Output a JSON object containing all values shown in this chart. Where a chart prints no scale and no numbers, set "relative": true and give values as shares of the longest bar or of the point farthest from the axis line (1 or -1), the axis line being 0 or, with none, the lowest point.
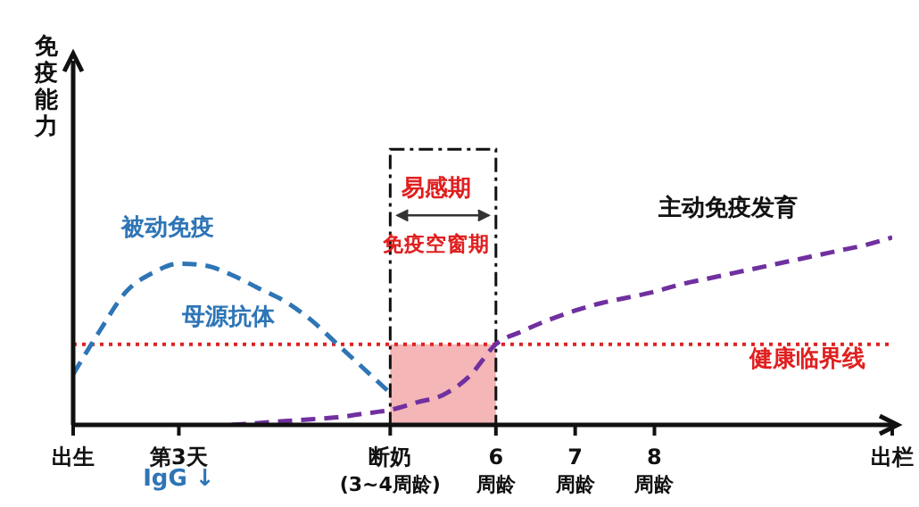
{
  "chart_data": {
    "type": "line",
    "relative": true,
    "ylabel": "免疫能力",
    "categories": [
      "出生",
      null,
      null,
      null,
      "第3天",
      null,
      null,
      null,
      null,
      null,
      null,
      null,
      "断奶\n(3~4周龄)",
      null,
      null,
      null,
      "6\n周龄",
      null,
      null,
      "7\n周龄",
      null,
      null,
      "8\n周龄",
      null,
      null,
      null,
      null,
      null,
      null,
      null,
      null,
      "出栏"
    ],
    "series": [
      {
        "name": "被动免疫",
        "color": "#2e75b6",
        "line_style": "dashed",
        "values": [
          0.27,
          0.5,
          0.71,
          0.81,
          0.86,
          0.85,
          0.8,
          0.73,
          0.66,
          0.56,
          0.43,
          0.3,
          0.17,
          null,
          null,
          null,
          null,
          null,
          null,
          null,
          null,
          null,
          null,
          null,
          null,
          null,
          null,
          null,
          null,
          null,
          null,
          null
        ]
      },
      {
        "name": "主动免疫发育",
        "color": "#7030a0",
        "line_style": "dashed",
        "values": [
          null,
          null,
          null,
          null,
          null,
          null,
          0,
          0.01,
          0.02,
          0.03,
          0.04,
          0.06,
          0.08,
          0.12,
          0.16,
          0.26,
          0.43,
          0.5,
          0.56,
          0.61,
          0.65,
          0.68,
          0.71,
          0.75,
          0.78,
          0.81,
          0.84,
          0.87,
          0.9,
          0.93,
          0.96,
          1.0
        ]
      }
    ],
    "ref_lines": [
      {
        "axis": "y",
        "value": 0.43,
        "label": "健康临界线",
        "color": "#e02020",
        "line_style": "dotted"
      }
    ],
    "bands": [
      {
        "axis": "x",
        "from": "断奶\n(3~4周龄)",
        "to": "6\n周龄",
        "color": "#f4b6b6"
      }
    ],
    "annotations": [
      "母源抗体",
      "免疫空窗期",
      "IgG ↓",
      "易感期"
    ],
    "grid": false,
    "legend": false,
    "marker": "none"
  }
}
